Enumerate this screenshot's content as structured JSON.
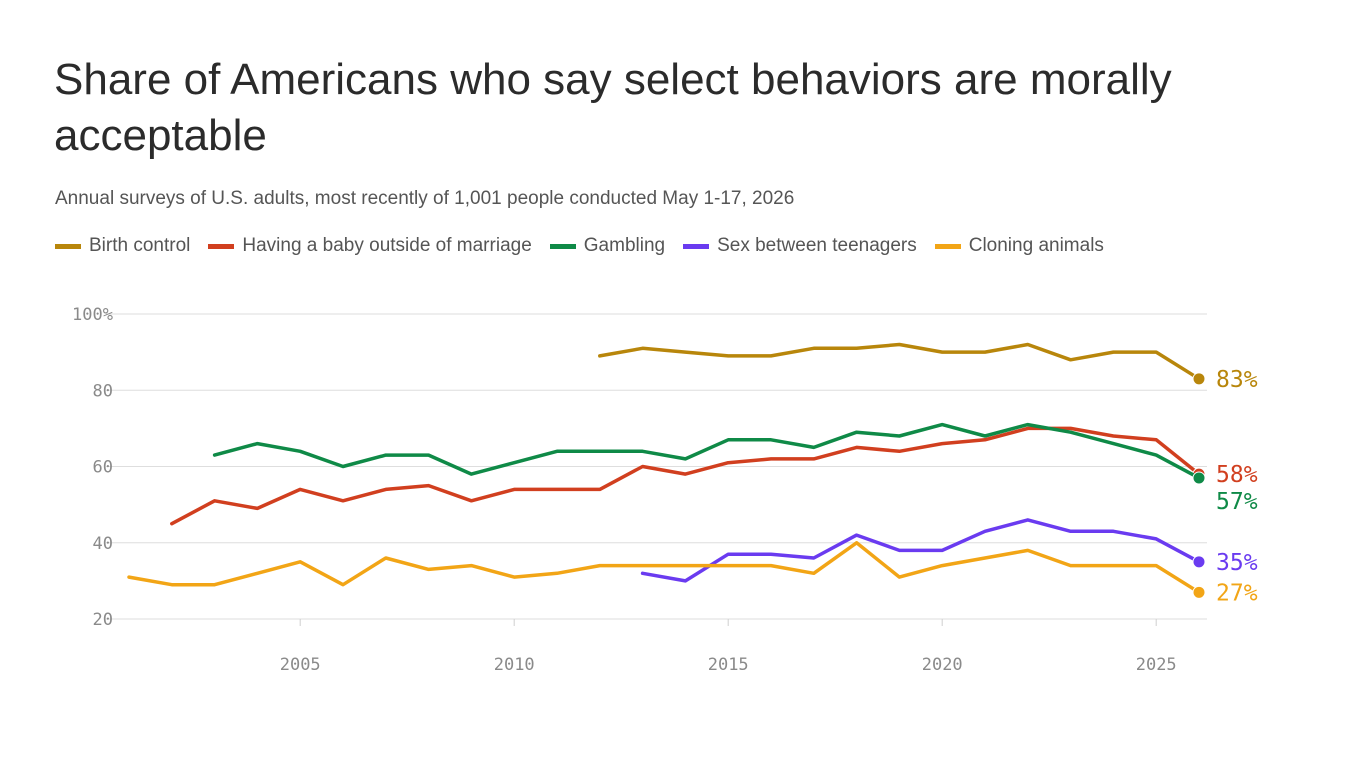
{
  "chart_data": {
    "type": "line",
    "title": "Share of Americans who say select behaviors are morally acceptable",
    "subtitle": "Annual surveys of U.S. adults, most recently of 1,001 people conducted May 1-17, 2026",
    "xlabel": "",
    "ylabel": "",
    "xlim": [
      2001,
      2026
    ],
    "ylim": [
      20,
      100
    ],
    "x_ticks": [
      2005,
      2010,
      2015,
      2020,
      2025
    ],
    "x_tick_labels": [
      "2005",
      "2010",
      "2015",
      "2020",
      "2025"
    ],
    "y_ticks": [
      20,
      40,
      60,
      80,
      100
    ],
    "y_tick_labels": [
      "20",
      "40",
      "60",
      "80",
      "100%"
    ],
    "grid": true,
    "legend_position": "top-left",
    "series": [
      {
        "name": "Birth control",
        "color": "#b8860b",
        "end_label": "83%",
        "x": [
          2012,
          2013,
          2014,
          2015,
          2016,
          2017,
          2018,
          2019,
          2020,
          2021,
          2022,
          2023,
          2024,
          2025,
          2026
        ],
        "values": [
          89,
          91,
          90,
          89,
          89,
          91,
          91,
          92,
          90,
          90,
          92,
          88,
          90,
          90,
          83
        ]
      },
      {
        "name": "Having a baby outside of marriage",
        "color": "#d13f1f",
        "end_label": "58%",
        "x": [
          2002,
          2003,
          2004,
          2005,
          2006,
          2007,
          2008,
          2009,
          2010,
          2011,
          2012,
          2013,
          2014,
          2015,
          2016,
          2017,
          2018,
          2019,
          2020,
          2021,
          2022,
          2023,
          2024,
          2025,
          2026
        ],
        "values": [
          45,
          51,
          49,
          54,
          51,
          54,
          55,
          51,
          54,
          54,
          54,
          60,
          58,
          61,
          62,
          62,
          65,
          64,
          66,
          67,
          70,
          70,
          68,
          67,
          58
        ]
      },
      {
        "name": "Gambling",
        "color": "#0f8a47",
        "end_label": "57%",
        "x": [
          2003,
          2004,
          2005,
          2006,
          2007,
          2008,
          2009,
          2010,
          2011,
          2012,
          2013,
          2014,
          2015,
          2016,
          2017,
          2018,
          2019,
          2020,
          2021,
          2022,
          2023,
          2024,
          2025,
          2026
        ],
        "values": [
          63,
          66,
          64,
          60,
          63,
          63,
          58,
          61,
          64,
          64,
          64,
          62,
          67,
          67,
          65,
          69,
          68,
          71,
          68,
          71,
          69,
          66,
          63,
          57
        ]
      },
      {
        "name": "Sex between teenagers",
        "color": "#6a3bf0",
        "end_label": "35%",
        "x": [
          2013,
          2014,
          2015,
          2016,
          2017,
          2018,
          2019,
          2020,
          2021,
          2022,
          2023,
          2024,
          2025,
          2026
        ],
        "values": [
          32,
          30,
          37,
          37,
          36,
          42,
          38,
          38,
          43,
          46,
          43,
          43,
          41,
          35
        ]
      },
      {
        "name": "Cloning animals",
        "color": "#f2a516",
        "end_label": "27%",
        "x": [
          2001,
          2002,
          2003,
          2004,
          2005,
          2006,
          2007,
          2008,
          2009,
          2010,
          2011,
          2012,
          2013,
          2014,
          2015,
          2016,
          2017,
          2018,
          2019,
          2020,
          2021,
          2022,
          2023,
          2024,
          2025,
          2026
        ],
        "values": [
          31,
          29,
          29,
          32,
          35,
          29,
          36,
          33,
          34,
          31,
          32,
          34,
          34,
          34,
          34,
          34,
          32,
          40,
          31,
          34,
          36,
          38,
          34,
          34,
          34,
          27
        ]
      }
    ]
  }
}
